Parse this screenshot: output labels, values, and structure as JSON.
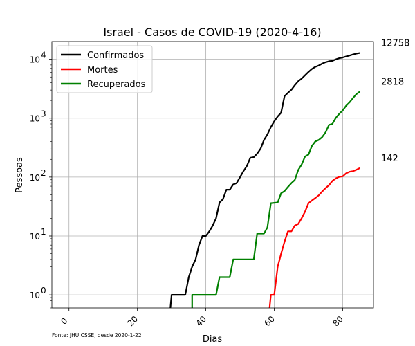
{
  "chart_data": {
    "type": "line",
    "title": "Israel - Casos de COVID-19 (2020-4-16)",
    "xlabel": "Dias",
    "ylabel": "Pessoas",
    "source_note": "Fonte: JHU CSSE, desde 2020-1-22",
    "xlim": [
      -5,
      89
    ],
    "ylim": [
      0.6,
      20000
    ],
    "yscale": "log",
    "grid": true,
    "legend_position": "top-left",
    "x_ticks": [
      0,
      20,
      40,
      60,
      80
    ],
    "x_tick_labels": [
      "0",
      "20",
      "40",
      "60",
      "80"
    ],
    "y_ticks": [
      1,
      10,
      100,
      1000,
      10000
    ],
    "y_tick_labels": [
      {
        "base": "10",
        "exp": "0"
      },
      {
        "base": "10",
        "exp": "1"
      },
      {
        "base": "10",
        "exp": "2"
      },
      {
        "base": "10",
        "exp": "3"
      },
      {
        "base": "10",
        "exp": "4"
      }
    ],
    "series": [
      {
        "name": "Confirmados",
        "color": "#000000",
        "end_label": "12758",
        "points": [
          [
            29.5,
            0.5
          ],
          [
            30,
            1
          ],
          [
            34,
            1
          ],
          [
            35,
            2
          ],
          [
            36,
            3
          ],
          [
            37,
            4
          ],
          [
            38,
            7
          ],
          [
            39,
            10
          ],
          [
            40,
            10
          ],
          [
            41,
            12
          ],
          [
            42,
            15
          ],
          [
            43,
            20
          ],
          [
            44,
            37
          ],
          [
            45,
            42
          ],
          [
            46,
            61
          ],
          [
            47,
            61
          ],
          [
            48,
            75
          ],
          [
            49,
            79
          ],
          [
            50,
            100
          ],
          [
            51,
            126
          ],
          [
            52,
            155
          ],
          [
            53,
            213
          ],
          [
            54,
            218
          ],
          [
            55,
            250
          ],
          [
            56,
            304
          ],
          [
            57,
            427
          ],
          [
            58,
            529
          ],
          [
            59,
            705
          ],
          [
            60,
            883
          ],
          [
            61,
            1071
          ],
          [
            62,
            1238
          ],
          [
            63,
            2369
          ],
          [
            64,
            2693
          ],
          [
            65,
            3035
          ],
          [
            66,
            3619
          ],
          [
            67,
            4247
          ],
          [
            68,
            4695
          ],
          [
            69,
            5358
          ],
          [
            70,
            6092
          ],
          [
            71,
            6857
          ],
          [
            72,
            7428
          ],
          [
            73,
            7851
          ],
          [
            74,
            8430
          ],
          [
            75,
            8904
          ],
          [
            76,
            9248
          ],
          [
            77,
            9404
          ],
          [
            78,
            9968
          ],
          [
            79,
            10408
          ],
          [
            80,
            10743
          ],
          [
            81,
            11145
          ],
          [
            82,
            11586
          ],
          [
            83,
            12046
          ],
          [
            84,
            12501
          ],
          [
            85,
            12758
          ]
        ]
      },
      {
        "name": "Mortes",
        "color": "#ff0000",
        "end_label": "142",
        "points": [
          [
            58.5,
            0.5
          ],
          [
            59,
            1
          ],
          [
            60,
            1
          ],
          [
            61,
            3
          ],
          [
            62,
            5
          ],
          [
            63,
            8
          ],
          [
            64,
            12
          ],
          [
            65,
            12
          ],
          [
            66,
            15
          ],
          [
            67,
            16
          ],
          [
            68,
            20
          ],
          [
            69,
            26
          ],
          [
            70,
            36
          ],
          [
            71,
            40
          ],
          [
            72,
            44
          ],
          [
            73,
            49
          ],
          [
            74,
            57
          ],
          [
            75,
            65
          ],
          [
            76,
            73
          ],
          [
            77,
            86
          ],
          [
            78,
            95
          ],
          [
            79,
            101
          ],
          [
            80,
            103
          ],
          [
            81,
            116
          ],
          [
            82,
            123
          ],
          [
            83,
            126
          ],
          [
            84,
            133
          ],
          [
            85,
            142
          ]
        ]
      },
      {
        "name": "Recuperados",
        "color": "#008000",
        "end_label": "2818",
        "points": [
          [
            36,
            0.5
          ],
          [
            36,
            1
          ],
          [
            43,
            1
          ],
          [
            44,
            2
          ],
          [
            47,
            2
          ],
          [
            48,
            4
          ],
          [
            54,
            4
          ],
          [
            55,
            11
          ],
          [
            57,
            11
          ],
          [
            58,
            14
          ],
          [
            59,
            36
          ],
          [
            61,
            37
          ],
          [
            62,
            53
          ],
          [
            63,
            58
          ],
          [
            64,
            68
          ],
          [
            65,
            79
          ],
          [
            66,
            89
          ],
          [
            67,
            132
          ],
          [
            68,
            163
          ],
          [
            69,
            224
          ],
          [
            70,
            241
          ],
          [
            71,
            338
          ],
          [
            72,
            403
          ],
          [
            73,
            427
          ],
          [
            74,
            477
          ],
          [
            75,
            574
          ],
          [
            76,
            770
          ],
          [
            77,
            801
          ],
          [
            78,
            1014
          ],
          [
            79,
            1183
          ],
          [
            80,
            1355
          ],
          [
            81,
            1627
          ],
          [
            82,
            1855
          ],
          [
            83,
            2195
          ],
          [
            84,
            2563
          ],
          [
            85,
            2818
          ]
        ]
      }
    ]
  }
}
